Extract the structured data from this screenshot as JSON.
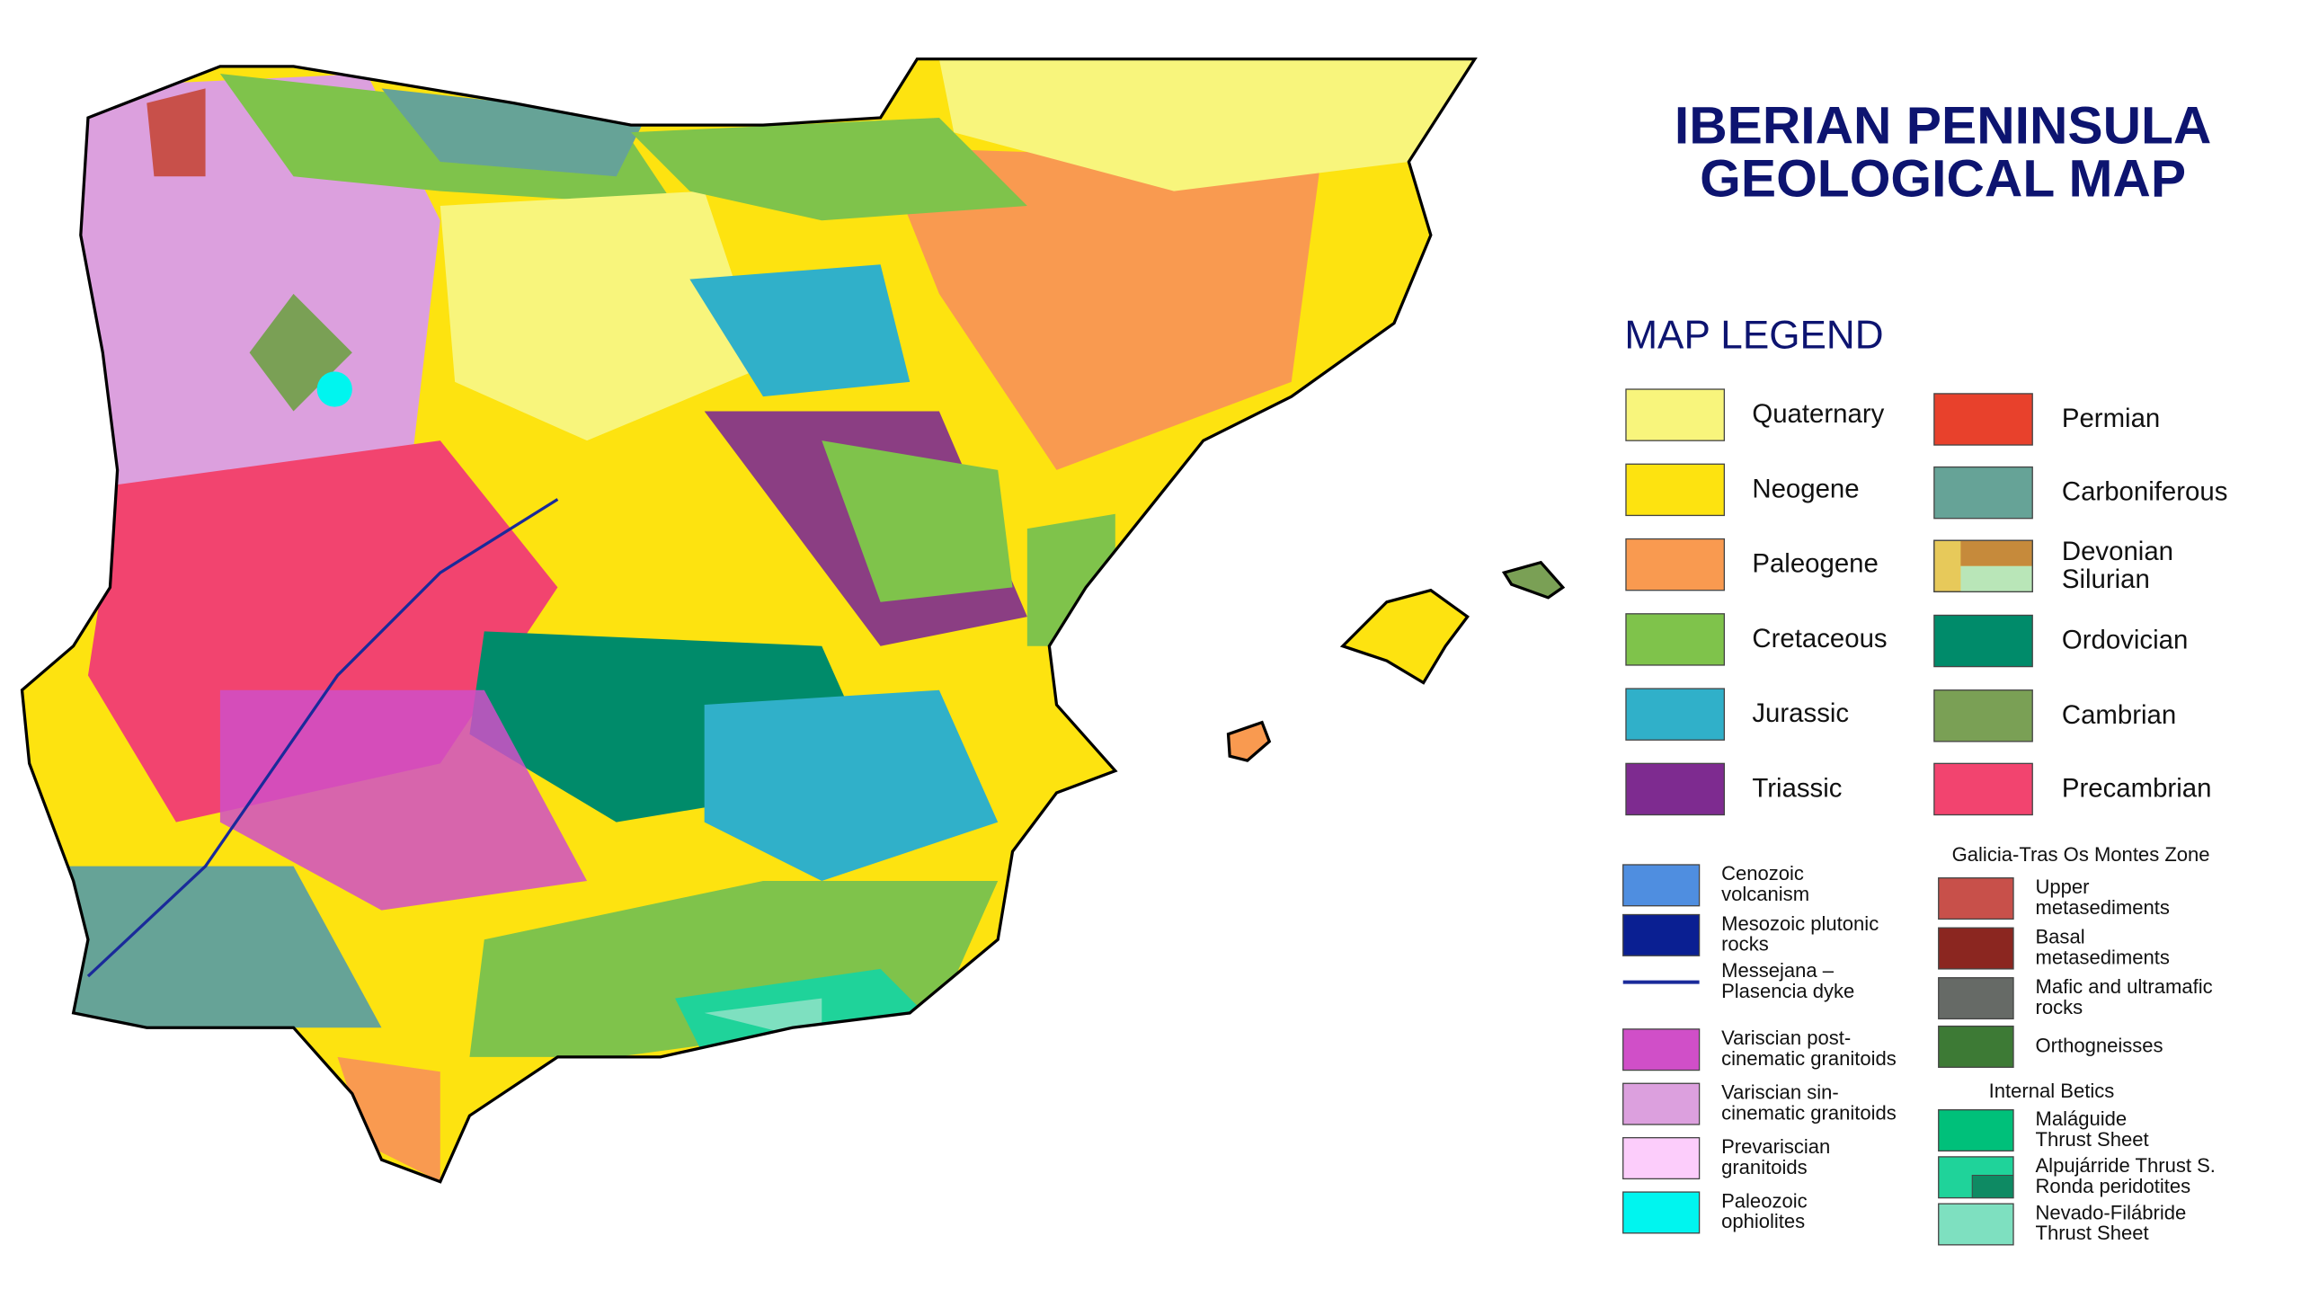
{
  "title": {
    "lines": [
      "IBERIAN PENINSULA",
      "GEOLOGICAL MAP"
    ]
  },
  "legend": {
    "title": "MAP LEGEND",
    "periods": [
      {
        "lines": [
          "Quaternary"
        ],
        "colors": [
          "#f8f57c"
        ]
      },
      {
        "lines": [
          "Neogene"
        ],
        "colors": [
          "#fde310"
        ]
      },
      {
        "lines": [
          "Paleogene"
        ],
        "colors": [
          "#f99a50"
        ]
      },
      {
        "lines": [
          "Cretaceous"
        ],
        "colors": [
          "#7fc34b"
        ]
      },
      {
        "lines": [
          "Jurassic"
        ],
        "colors": [
          "#30b0c9"
        ]
      },
      {
        "lines": [
          "Triassic"
        ],
        "colors": [
          "#7e2b90"
        ]
      },
      {
        "lines": [
          "Permian"
        ],
        "colors": [
          "#e8412c"
        ]
      },
      {
        "lines": [
          "Carboniferous"
        ],
        "colors": [
          "#66a397"
        ]
      },
      {
        "lines": [
          "Devonian",
          "Silurian"
        ],
        "colors": [
          "#e7c95a",
          "#c68a3b",
          "#b9e6b8"
        ]
      },
      {
        "lines": [
          "Ordovician"
        ],
        "colors": [
          "#008b6a"
        ]
      },
      {
        "lines": [
          "Cambrian"
        ],
        "colors": [
          "#7aa055"
        ]
      },
      {
        "lines": [
          "Precambrian"
        ],
        "colors": [
          "#f2446f"
        ]
      }
    ],
    "units": [
      {
        "lines": [
          "Cenozoic",
          "volcanism"
        ],
        "colors": [
          "#4f8ee0"
        ]
      },
      {
        "lines": [
          "Mesozoic plutonic",
          "rocks"
        ],
        "colors": [
          "#0a1f92"
        ]
      },
      {
        "lines": [
          "Messejana –",
          "Plasencia dyke"
        ],
        "colors": [
          "#1a2a9a"
        ],
        "shape": "line"
      },
      {
        "lines": [
          "Variscian post-",
          "cinematic granitoids"
        ],
        "colors": [
          "#d04fc8"
        ]
      },
      {
        "lines": [
          "Variscian sin-",
          "cinematic granitoids"
        ],
        "colors": [
          "#dca0de"
        ]
      },
      {
        "lines": [
          "Prevariscian",
          "granitoids"
        ],
        "colors": [
          "#fccdfb"
        ]
      },
      {
        "lines": [
          "Paleozoic",
          "ophiolites"
        ],
        "colors": [
          "#00f5ef"
        ]
      }
    ],
    "galicia": {
      "title": "Galicia-Tras Os Montes Zone",
      "items": [
        {
          "lines": [
            "Upper",
            "metasediments"
          ],
          "colors": [
            "#c8504a"
          ]
        },
        {
          "lines": [
            "Basal",
            "metasediments"
          ],
          "colors": [
            "#8b2620"
          ]
        },
        {
          "lines": [
            "Mafic and ultramafic",
            "rocks"
          ],
          "colors": [
            "#666a66"
          ]
        },
        {
          "lines": [
            "Orthogneisses"
          ],
          "colors": [
            "#3d7a35"
          ]
        }
      ]
    },
    "betics": {
      "title": "Internal Betics",
      "items": [
        {
          "lines": [
            "Maláguide",
            "Thrust Sheet"
          ],
          "colors": [
            "#00c07a"
          ]
        },
        {
          "lines": [
            "Alpujárride Thrust S.",
            "Ronda peridotites"
          ],
          "colors": [
            "#1fd39a",
            "#0e8a63"
          ]
        },
        {
          "lines": [
            "Nevado-Filábride",
            "Thrust Sheet"
          ],
          "colors": [
            "#7ee0c0"
          ]
        }
      ]
    }
  }
}
